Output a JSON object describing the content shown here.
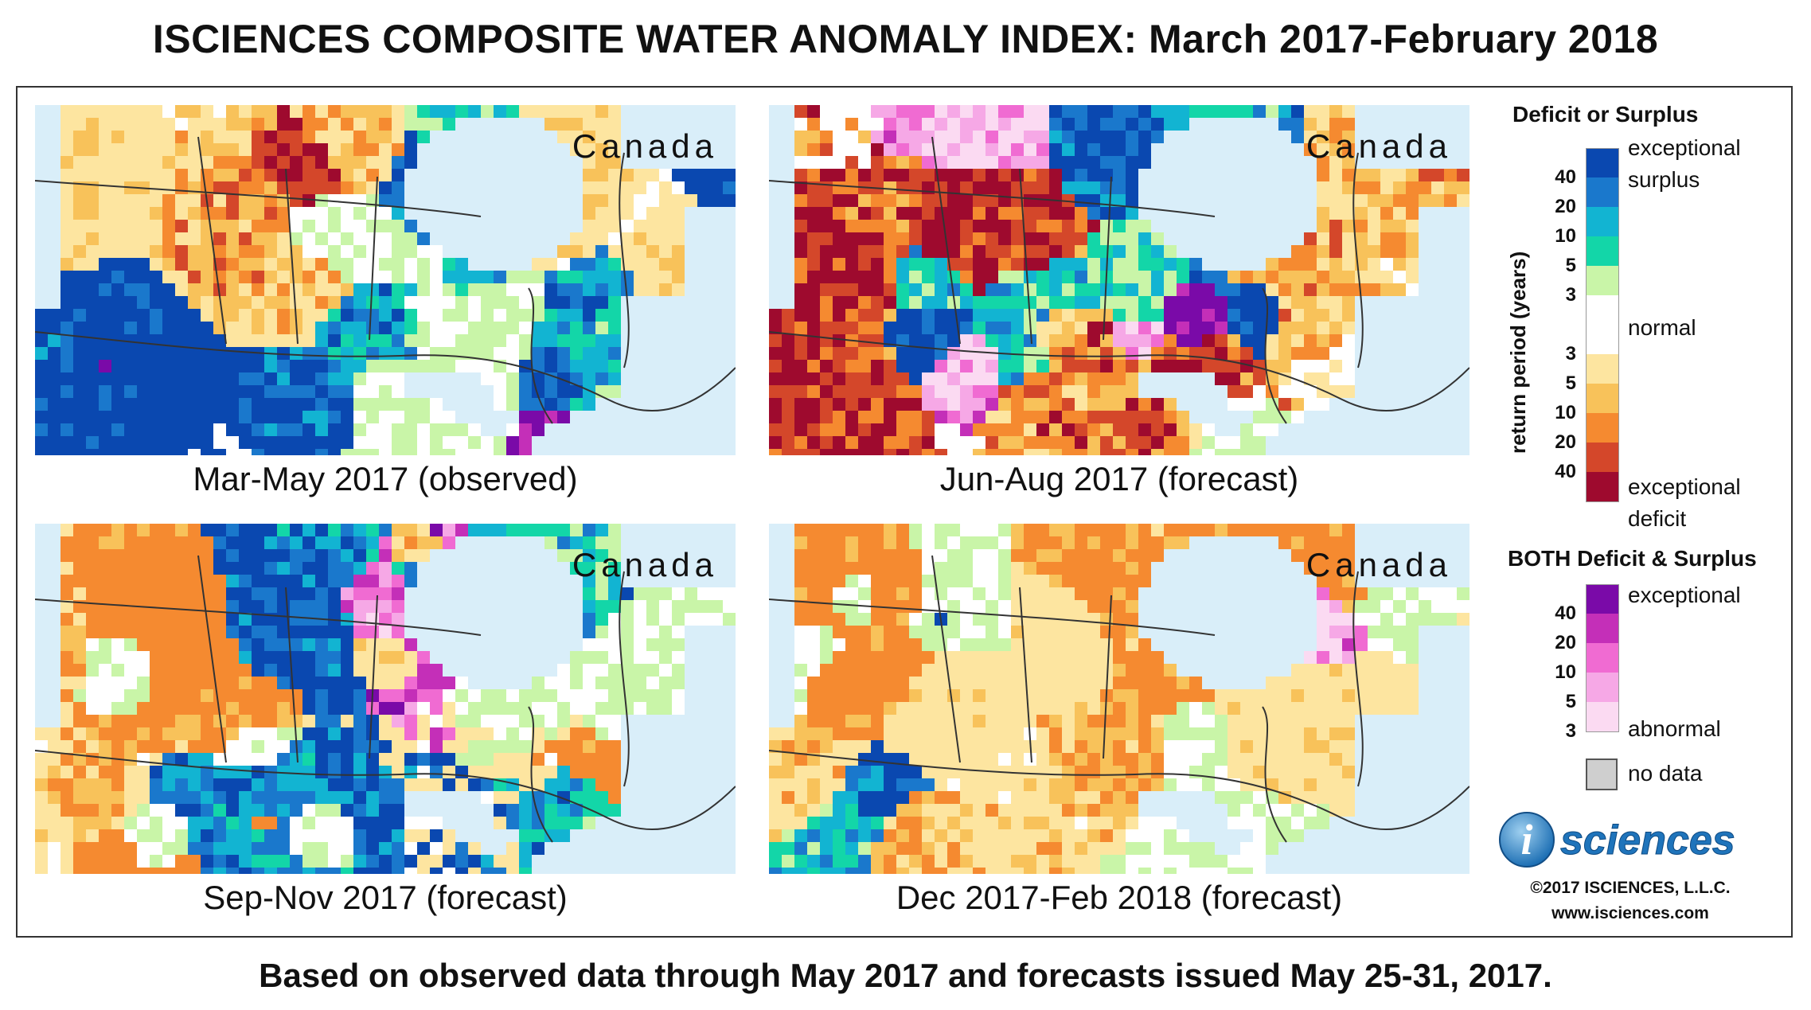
{
  "title": "ISCIENCES COMPOSITE WATER ANOMALY INDEX: March 2017-February 2018",
  "panels": [
    {
      "label": "Mar-May 2017 (observed)",
      "region": "Canada",
      "seed": 11
    },
    {
      "label": "Jun-Aug 2017 (forecast)",
      "region": "Canada",
      "seed": 23
    },
    {
      "label": "Sep-Nov 2017 (forecast)",
      "region": "Canada",
      "seed": 37
    },
    {
      "label": "Dec 2017-Feb 2018 (forecast)",
      "region": "Canada",
      "seed": 53
    }
  ],
  "legend": {
    "deficit_surplus_title": "Deficit or Surplus",
    "axis_title": "return period (years)",
    "exceptional_surplus": "exceptional surplus",
    "normal": "normal",
    "exceptional_deficit": "exceptional deficit",
    "surplus_ticks": [
      "40",
      "20",
      "10",
      "5",
      "3"
    ],
    "deficit_ticks": [
      "3",
      "5",
      "10",
      "20",
      "40"
    ],
    "surplus_colors": [
      "#0a48b0",
      "#1a78cc",
      "#12b4d2",
      "#13d6a8",
      "#c9f5a8"
    ],
    "normal_color": "#ffffff",
    "deficit_colors": [
      "#fde5a0",
      "#f8c25a",
      "#f58a30",
      "#d4472a",
      "#9e0a2e"
    ],
    "both_title": "BOTH Deficit & Surplus",
    "both_exceptional": "exceptional",
    "both_abnormal": "abnormal",
    "both_ticks": [
      "40",
      "20",
      "10",
      "5",
      "3"
    ],
    "both_colors": [
      "#7a0aa8",
      "#c42fb8",
      "#f06bd2",
      "#f6a8e6",
      "#fbdaf2"
    ],
    "no_data": "no data",
    "no_data_color": "#cfcfcf"
  },
  "logo_text": "sciences",
  "logo_letter": "i",
  "copyright": "©2017 ISCIENCES, L.L.C.",
  "website": "www.isciences.com",
  "footer": "Based on observed data through May 2017 and forecasts issued May 25-31, 2017."
}
